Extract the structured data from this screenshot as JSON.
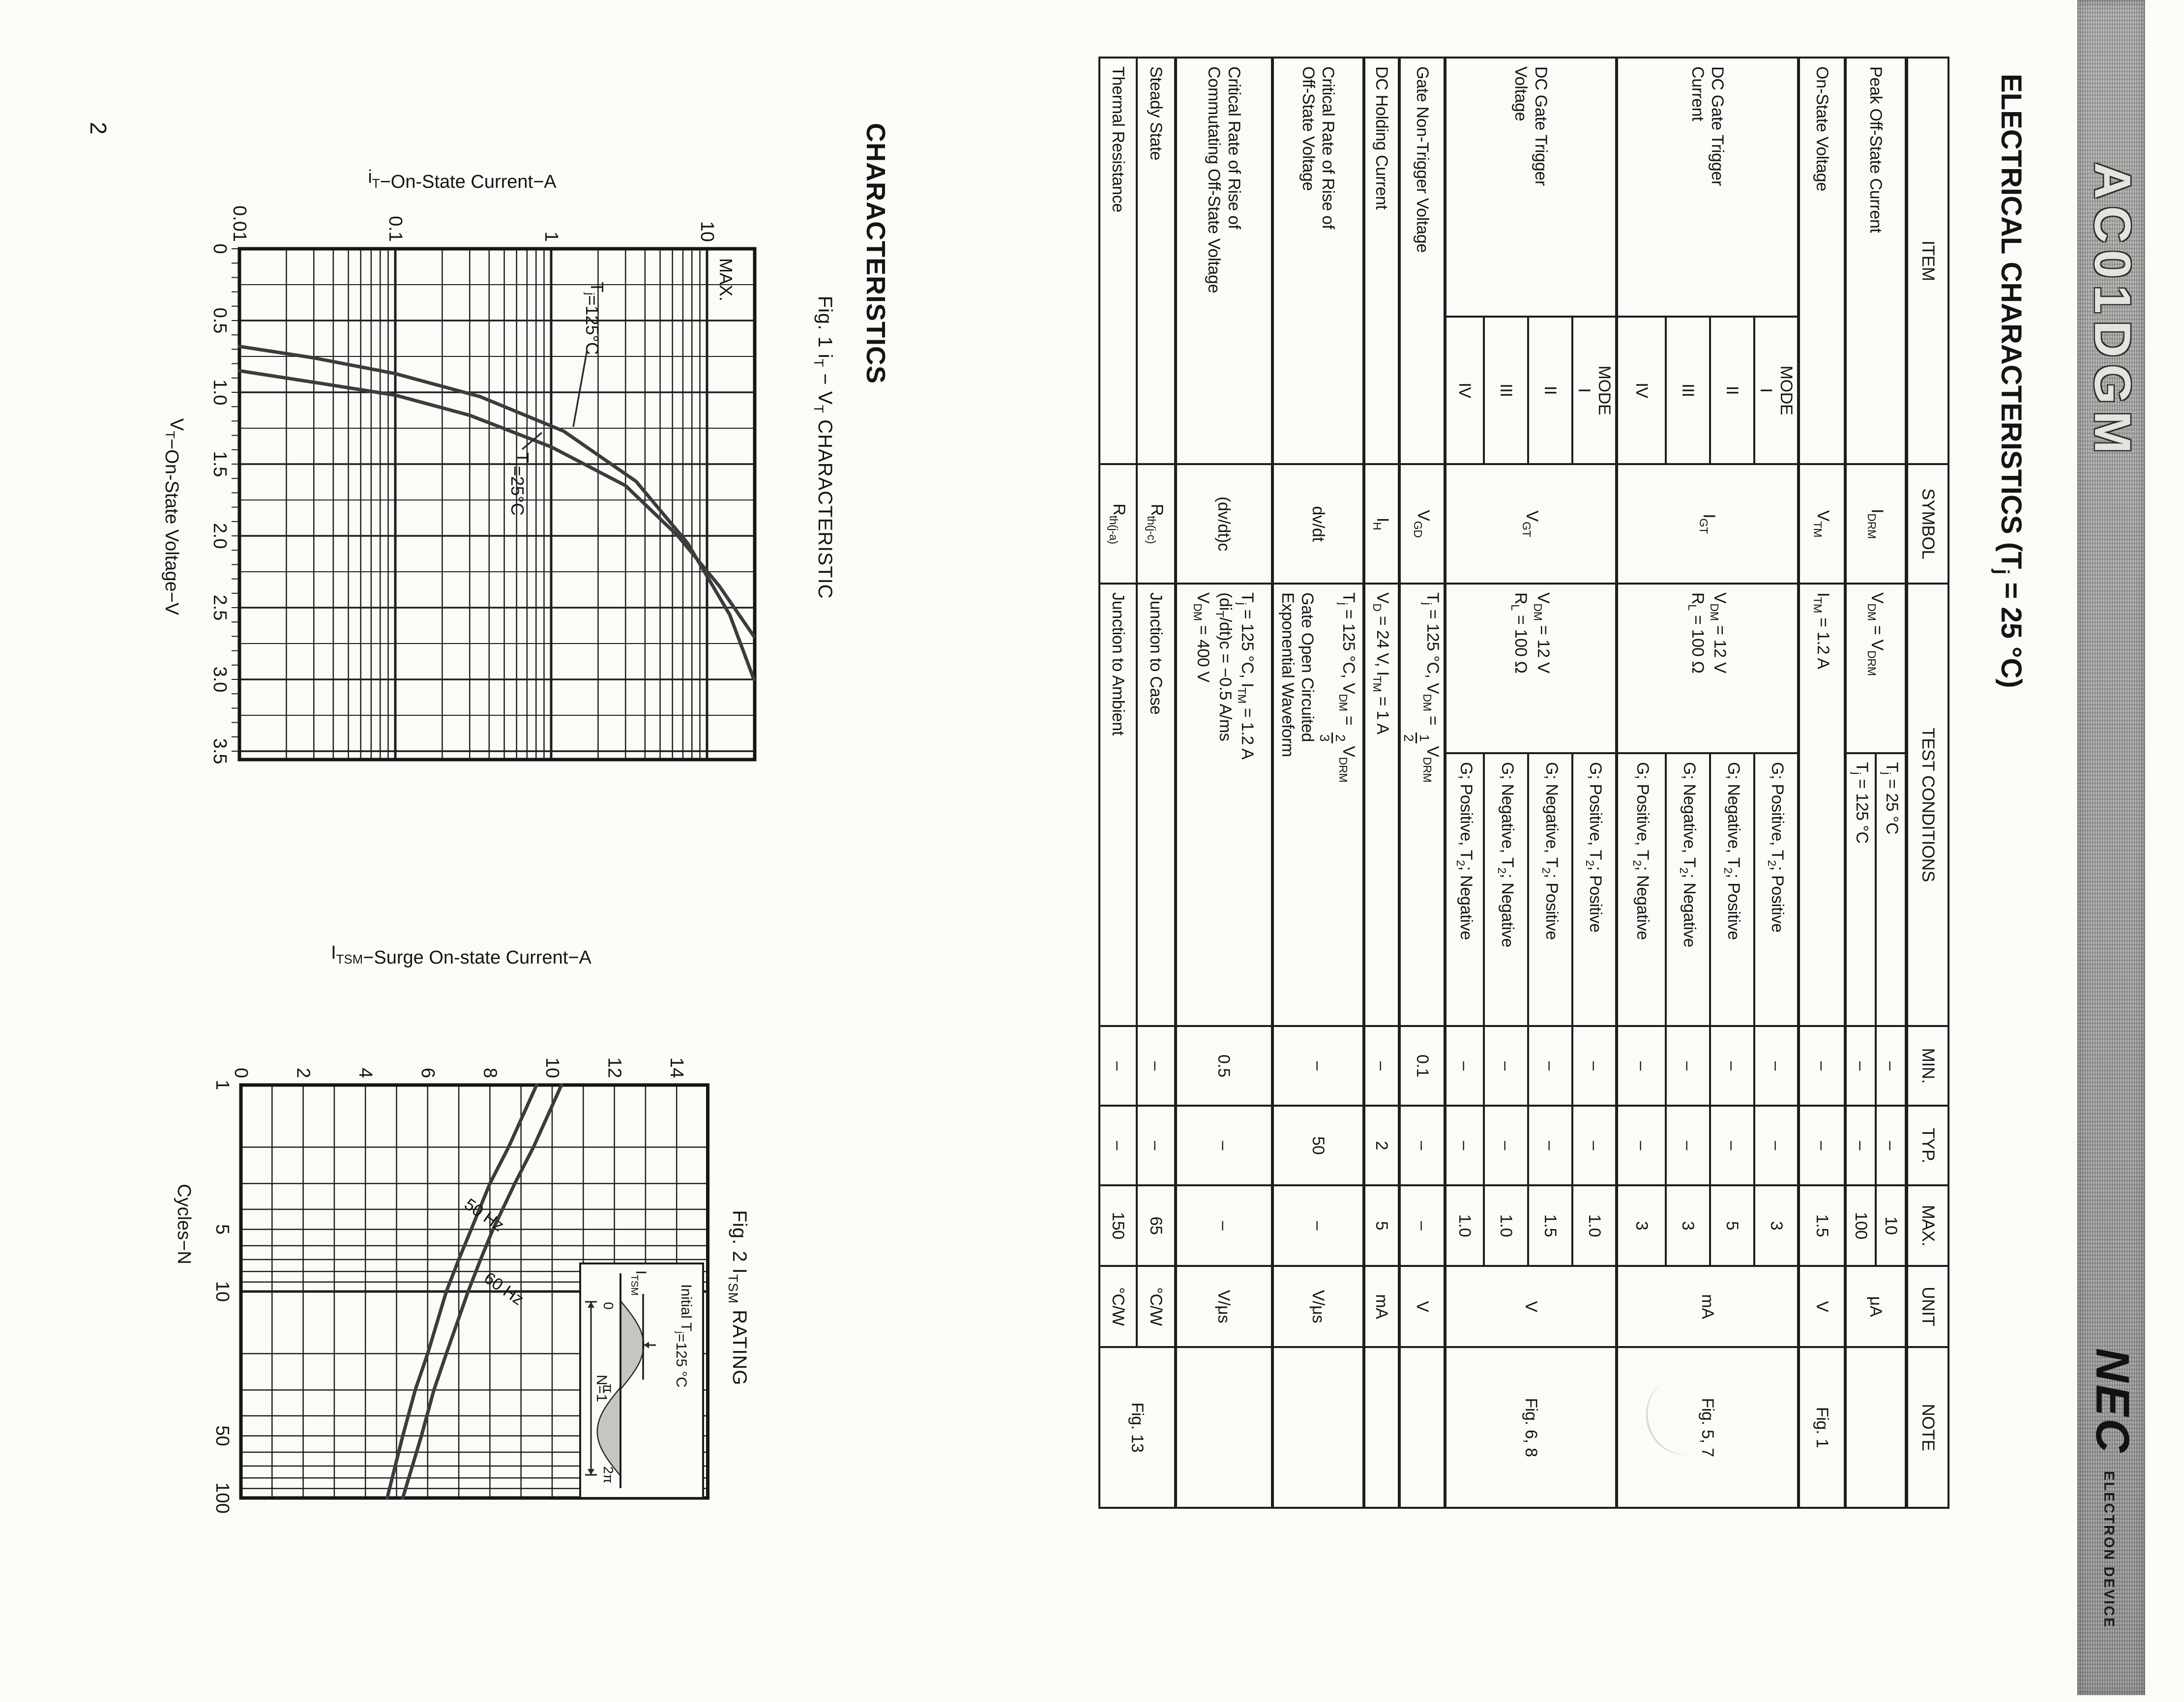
{
  "page": {
    "number": "2"
  },
  "band": {
    "part_number": "AC01DGM",
    "brand": "NEC",
    "brand_sub": "ELECTRON DEVICE"
  },
  "title": "ELECTRICAL CHARACTERISTICS (T~j~ = 25 °C)",
  "section_heading": "CHARACTERISTICS",
  "table": {
    "headers": {
      "item": "ITEM",
      "symbol": "SYMBOL",
      "conditions": "TEST CONDITIONS",
      "min": "MIN.",
      "typ": "TYP.",
      "max": "MAX.",
      "unit": "UNIT",
      "note": "NOTE"
    },
    "rows": [
      {
        "item": "Peak Off-State Current",
        "symbol": "I~DRM~",
        "cond1": "V~DM~ = V~DRM~",
        "cond2": "T~j~ = 25 °C",
        "min": "–",
        "typ": "–",
        "max": "10",
        "unit": "μA",
        "note": ""
      },
      {
        "cond2": "T~j~ = 125 °C",
        "min": "–",
        "typ": "–",
        "max": "100"
      },
      {
        "item": "On-State Voltage",
        "symbol": "V~TM~",
        "cond": "I~TM~ = 1.2 A",
        "min": "–",
        "typ": "–",
        "max": "1.5",
        "unit": "V",
        "note": "Fig. 1"
      },
      {
        "item": "DC Gate Trigger\nCurrent",
        "mode": "MODE\nI",
        "symbol": "I~GT~",
        "cond1": "V~DM~ = 12 V\nR~L~ = 100 Ω",
        "cond2": "G; Positive, T~2~; Positive",
        "min": "–",
        "typ": "–",
        "max": "3",
        "unit": "mA",
        "note": "Fig. 5, 7"
      },
      {
        "mode": "II",
        "cond2": "G; Negative, T~2~; Positive",
        "min": "–",
        "typ": "–",
        "max": "5"
      },
      {
        "mode": "III",
        "cond2": "G; Negative, T~2~; Negative",
        "min": "–",
        "typ": "–",
        "max": "3"
      },
      {
        "mode": "IV",
        "cond2": "G; Positive, T~2~; Negative",
        "min": "–",
        "typ": "–",
        "max": "3"
      },
      {
        "item": "DC Gate Trigger\nVoltage",
        "mode": "MODE\nI",
        "symbol": "V~GT~",
        "cond1": "V~DM~ = 12 V\nR~L~ = 100 Ω",
        "cond2": "G; Positive, T~2~; Positive",
        "min": "–",
        "typ": "–",
        "max": "1.0",
        "unit": "V",
        "note": "Fig. 6, 8"
      },
      {
        "mode": "II",
        "cond2": "G; Negative, T~2~; Positive",
        "min": "–",
        "typ": "–",
        "max": "1.5"
      },
      {
        "mode": "III",
        "cond2": "G; Negative, T~2~; Negative",
        "min": "–",
        "typ": "–",
        "max": "1.0"
      },
      {
        "mode": "IV",
        "cond2": "G; Positive, T~2~; Negative",
        "min": "–",
        "typ": "–",
        "max": "1.0"
      },
      {
        "item": "Gate Non-Trigger Voltage",
        "symbol": "V~GD~",
        "cond": "T~j~ = 125 °C, V~DM~ = {1/2}V~DRM~",
        "min": "0.1",
        "typ": "–",
        "max": "–",
        "unit": "V",
        "note": ""
      },
      {
        "item": "DC Holding Current",
        "symbol": "I~H~",
        "cond": "V~D~ = 24 V, I~TM~ = 1 A",
        "min": "–",
        "typ": "2",
        "max": "5",
        "unit": "mA",
        "note": ""
      },
      {
        "item": "Critical Rate of Rise of\nOff-State Voltage",
        "symbol": "dv/dt",
        "cond": "T~j~ = 125 °C, V~DM~ = {2/3}V~DRM~\nGate Open Circuited\nExponential Waveform",
        "min": "–",
        "typ": "50",
        "max": "–",
        "unit": "V/μs",
        "note": ""
      },
      {
        "item": "Critical Rate of Rise of\nCommutating Off-State Voltage",
        "symbol": "(dv/dt)c",
        "cond": "T~j~ = 125 °C, I~TM~ = 1.2 A\n(di~T~/dt)c = −0.5 A/ms\nV~DM~ = 400 V",
        "min": "0.5",
        "typ": "–",
        "max": "–",
        "unit": "V/μs",
        "note": ""
      },
      {
        "item": "Steady State",
        "symbol": "R~th(j-c)~",
        "cond": "Junction to Case",
        "min": "–",
        "typ": "–",
        "max": "65",
        "unit": "°C/W",
        "note": "Fig. 13"
      },
      {
        "item": "Thermal Resistance",
        "symbol": "R~th(j-a)~",
        "cond": "Junction to Ambient",
        "min": "–",
        "typ": "–",
        "max": "150",
        "unit": "°C/W"
      }
    ]
  },
  "chart_data": [
    {
      "type": "line",
      "caption": "Fig. 1  i~T~ − V~T~ CHARACTERISTIC",
      "xlabel": "V~T~−On-State Voltage−V",
      "ylabel": "i~T~−On-State Current−A",
      "x_scale": "linear",
      "y_scale": "log",
      "xlim": [
        0,
        3.56
      ],
      "ylim": [
        0.01,
        20
      ],
      "x_ticks": [
        "0",
        "0.5",
        "1.0",
        "1.5",
        "2.0",
        "2.5",
        "3.0",
        "3.5"
      ],
      "y_ticks": [
        "0.01",
        "0.1",
        "1",
        "10"
      ],
      "annotation": "MAX.",
      "grid": "on",
      "series": [
        {
          "name": "T~j~=125°C",
          "points": [
            [
              0.68,
              0.01
            ],
            [
              0.76,
              0.03
            ],
            [
              0.87,
              0.1
            ],
            [
              1.03,
              0.35
            ],
            [
              1.27,
              1.2
            ],
            [
              1.62,
              3.5
            ],
            [
              2.05,
              7.5
            ],
            [
              2.55,
              14
            ],
            [
              3.0,
              20
            ]
          ]
        },
        {
          "name": "T~j~=25°C",
          "points": [
            [
              0.85,
              0.01
            ],
            [
              0.93,
              0.03
            ],
            [
              1.02,
              0.1
            ],
            [
              1.16,
              0.3
            ],
            [
              1.38,
              1.0
            ],
            [
              1.65,
              3.0
            ],
            [
              2.0,
              6.5
            ],
            [
              2.35,
              12
            ],
            [
              2.7,
              20
            ]
          ]
        }
      ]
    },
    {
      "type": "line",
      "caption": "Fig. 2  I~TSM~ RATING",
      "xlabel": "Cycles−N",
      "ylabel": "I~TSM~−Surge On-state Current−A",
      "x_scale": "log",
      "y_scale": "linear",
      "xlim": [
        1,
        100
      ],
      "ylim": [
        0,
        15
      ],
      "x_ticks": [
        "1",
        "5",
        "10",
        "50",
        "100"
      ],
      "y_ticks": [
        "0",
        "2",
        "4",
        "6",
        "8",
        "10",
        "12",
        "14"
      ],
      "grid": "on",
      "inset": {
        "title": "Initial  T~j~=125 °C",
        "peak_label": "I~TSM~",
        "x_labels": [
          "0",
          "π",
          "2π"
        ],
        "n_label": "N=1"
      },
      "series": [
        {
          "name": "60 Hz",
          "points": [
            [
              1,
              10.3
            ],
            [
              2,
              9.4
            ],
            [
              3,
              8.8
            ],
            [
              5,
              8.1
            ],
            [
              7,
              7.7
            ],
            [
              10,
              7.3
            ],
            [
              20,
              6.6
            ],
            [
              30,
              6.2
            ],
            [
              50,
              5.8
            ],
            [
              100,
              5.2
            ]
          ]
        },
        {
          "name": "50 Hz",
          "points": [
            [
              1,
              9.5
            ],
            [
              2,
              8.6
            ],
            [
              3,
              8.0
            ],
            [
              5,
              7.4
            ],
            [
              7,
              7.0
            ],
            [
              10,
              6.6
            ],
            [
              20,
              6.0
            ],
            [
              30,
              5.6
            ],
            [
              50,
              5.2
            ],
            [
              100,
              4.7
            ]
          ]
        }
      ]
    }
  ]
}
